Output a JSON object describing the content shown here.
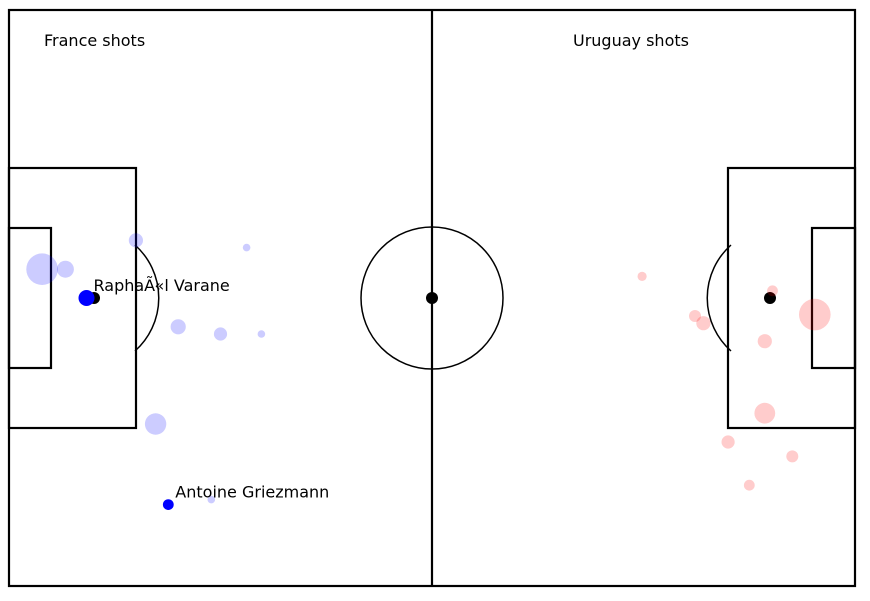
{
  "chart_data": {
    "type": "scatter",
    "pitch": {
      "length": 120,
      "width": 80
    },
    "panels": [
      {
        "name": "France shots",
        "side": "left"
      },
      {
        "name": "Uruguay shots",
        "side": "right"
      }
    ],
    "colors": {
      "france": "#0000ff",
      "uruguay": "#ff0000",
      "line": "#000000"
    },
    "series": [
      {
        "name": "France shots",
        "color": "#0000ff",
        "points": [
          {
            "x": 4.7,
            "y": 44.0,
            "xg": 0.35,
            "goal": false
          },
          {
            "x": 8.0,
            "y": 44.0,
            "xg": 0.1,
            "goal": false
          },
          {
            "x": 18.0,
            "y": 48.0,
            "xg": 0.07,
            "goal": false
          },
          {
            "x": 11.0,
            "y": 40.0,
            "xg": 0.09,
            "goal": true,
            "player": "RaphaÃ«l Varane"
          },
          {
            "x": 24.0,
            "y": 36.0,
            "xg": 0.08,
            "goal": false
          },
          {
            "x": 30.0,
            "y": 35.0,
            "xg": 0.06,
            "goal": false
          },
          {
            "x": 33.7,
            "y": 47.0,
            "xg": 0.02,
            "goal": false
          },
          {
            "x": 35.8,
            "y": 35.0,
            "xg": 0.02,
            "goal": false
          },
          {
            "x": 20.8,
            "y": 22.5,
            "xg": 0.16,
            "goal": false
          },
          {
            "x": 28.7,
            "y": 12.0,
            "xg": 0.02,
            "goal": false
          },
          {
            "x": 22.6,
            "y": 11.3,
            "xg": 0.04,
            "goal": true,
            "player": "Antoine Griezmann"
          }
        ]
      },
      {
        "name": "Uruguay shots",
        "color": "#ff0000",
        "points": [
          {
            "x": 114.3,
            "y": 37.7,
            "xg": 0.35,
            "goal": false
          },
          {
            "x": 108.3,
            "y": 41.0,
            "xg": 0.04,
            "goal": false
          },
          {
            "x": 107.2,
            "y": 34.0,
            "xg": 0.07,
            "goal": false
          },
          {
            "x": 97.3,
            "y": 37.5,
            "xg": 0.05,
            "goal": false
          },
          {
            "x": 98.5,
            "y": 36.5,
            "xg": 0.07,
            "goal": false
          },
          {
            "x": 89.8,
            "y": 43.0,
            "xg": 0.03,
            "goal": false
          },
          {
            "x": 107.2,
            "y": 24.0,
            "xg": 0.15,
            "goal": false
          },
          {
            "x": 102.0,
            "y": 20.0,
            "xg": 0.06,
            "goal": false
          },
          {
            "x": 111.1,
            "y": 18.0,
            "xg": 0.05,
            "goal": false
          },
          {
            "x": 105.0,
            "y": 14.0,
            "xg": 0.04,
            "goal": false
          }
        ]
      }
    ]
  }
}
